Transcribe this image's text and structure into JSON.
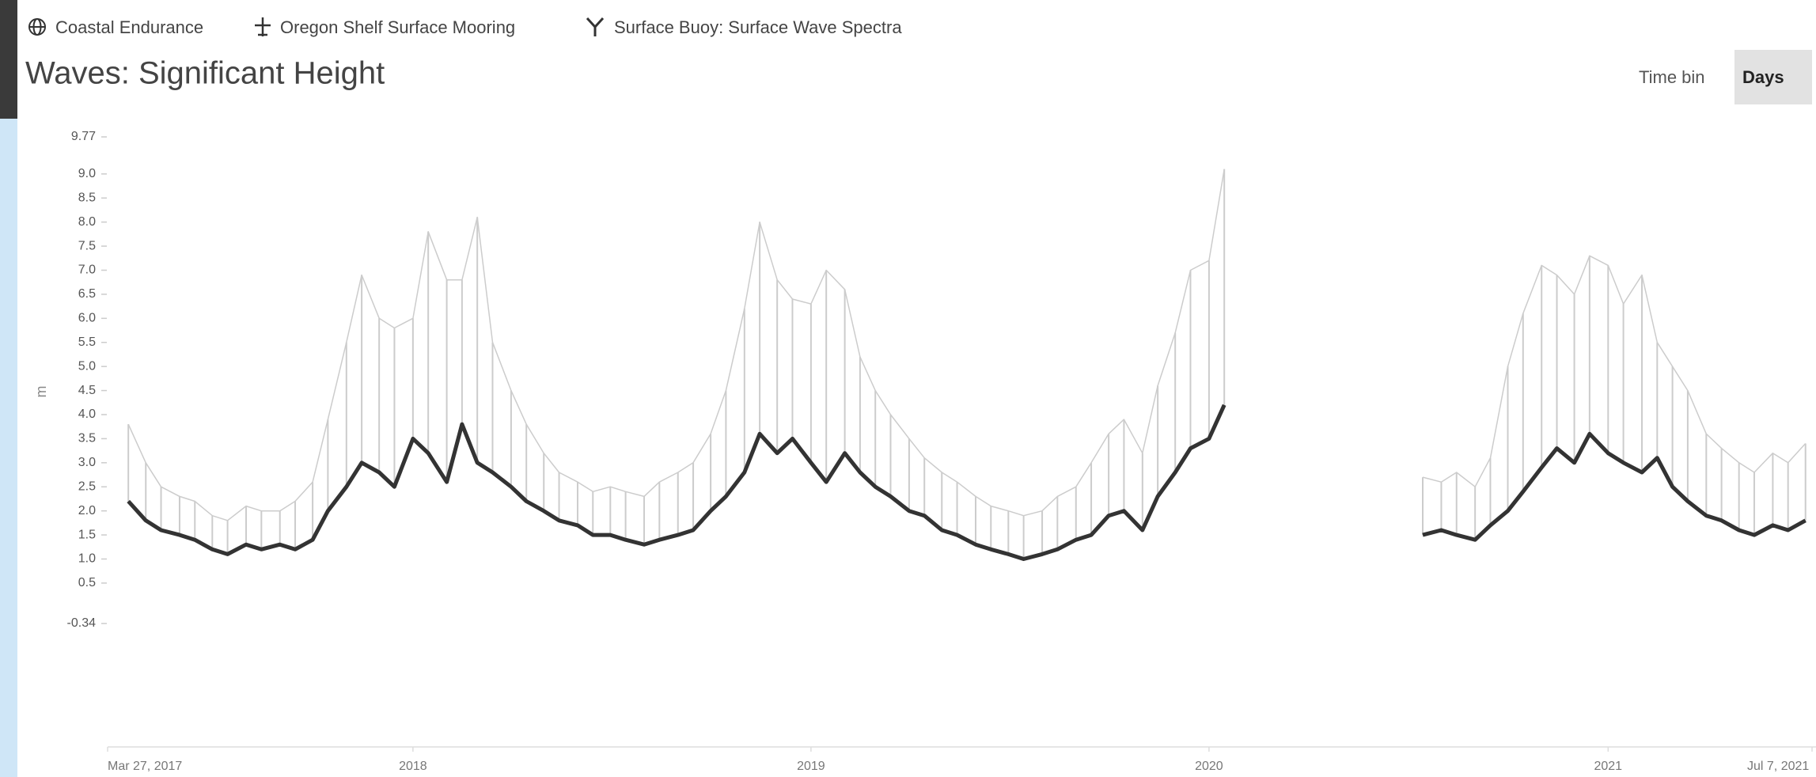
{
  "breadcrumb": [
    "Coastal Endurance",
    "Oregon Shelf Surface Mooring",
    "Surface Buoy: Surface Wave Spectra"
  ],
  "time_bin": {
    "label": "Time bin",
    "value": "Days"
  },
  "chart_data": {
    "type": "line",
    "title": "Waves: Significant Height",
    "y_label": "m",
    "xlim": [
      "2017-03-27",
      "2021-07-07"
    ],
    "xticks": [
      {
        "value": "2017-03-27",
        "label": "Mar 27, 2017"
      },
      "2018",
      "2019",
      "2020",
      "2021",
      {
        "value": "2021-07-07",
        "label": "Jul 7, 2021"
      }
    ],
    "ylim": [
      -0.34,
      9.77
    ],
    "yticks": [
      9.77,
      {
        "value": 9,
        "label": "9.0"
      },
      8.5,
      {
        "value": 8,
        "label": "8.0"
      },
      7.5,
      {
        "value": 7,
        "label": "7.0"
      },
      6.5,
      {
        "value": 6,
        "label": "6.0"
      },
      5.5,
      {
        "value": 5,
        "label": "5.0"
      },
      4.5,
      {
        "value": 4,
        "label": "4.0"
      },
      3.5,
      {
        "value": 3,
        "label": "3.0"
      },
      2.5,
      {
        "value": 2,
        "label": "2.0"
      },
      1.5,
      {
        "value": 1,
        "label": "1.0"
      },
      0.5,
      -0.34
    ],
    "x": [
      "2017-04-15",
      "2017-05-01",
      "2017-05-15",
      "2017-06-01",
      "2017-06-15",
      "2017-07-01",
      "2017-07-15",
      "2017-08-01",
      "2017-08-15",
      "2017-09-01",
      "2017-09-15",
      "2017-10-01",
      "2017-10-15",
      "2017-11-01",
      "2017-11-15",
      "2017-12-01",
      "2017-12-15",
      "2018-01-01",
      "2018-01-15",
      "2018-02-01",
      "2018-02-15",
      "2018-03-01",
      "2018-03-15",
      "2018-04-01",
      "2018-04-15",
      "2018-05-01",
      "2018-05-15",
      "2018-06-01",
      "2018-06-15",
      "2018-07-01",
      "2018-07-15",
      "2018-08-01",
      "2018-08-15",
      "2018-09-01",
      "2018-09-15",
      "2018-10-01",
      "2018-10-15",
      "2018-11-01",
      "2018-11-15",
      "2018-12-01",
      "2018-12-15",
      "2019-01-01",
      "2019-01-15",
      "2019-02-01",
      "2019-02-15",
      "2019-03-01",
      "2019-03-15",
      "2019-04-01",
      "2019-04-15",
      "2019-05-01",
      "2019-05-15",
      "2019-06-01",
      "2019-06-15",
      "2019-07-01",
      "2019-07-15",
      "2019-08-01",
      "2019-08-15",
      "2019-09-01",
      "2019-09-15",
      "2019-10-01",
      "2019-10-15",
      "2019-11-01",
      "2019-11-15",
      "2019-12-01",
      "2019-12-15",
      "2020-01-01",
      "2020-01-15",
      "2020-02-01",
      "2020-07-15",
      "2020-08-01",
      "2020-08-15",
      "2020-09-01",
      "2020-09-15",
      "2020-10-01",
      "2020-10-15",
      "2020-11-01",
      "2020-11-15",
      "2020-12-01",
      "2020-12-15",
      "2021-01-01",
      "2021-01-15",
      "2021-02-01",
      "2021-02-15",
      "2021-03-01",
      "2021-03-15",
      "2021-04-01",
      "2021-04-15",
      "2021-05-01",
      "2021-05-15",
      "2021-06-01",
      "2021-06-15",
      "2021-07-01"
    ],
    "series": [
      {
        "color": "#cccccc",
        "values": [
          3.8,
          3.0,
          2.5,
          2.3,
          2.2,
          1.9,
          1.8,
          2.1,
          2.0,
          2.0,
          2.2,
          2.6,
          3.9,
          5.5,
          6.9,
          6.0,
          5.8,
          6.0,
          7.8,
          6.8,
          6.8,
          8.1,
          5.5,
          4.5,
          3.8,
          3.2,
          2.8,
          2.6,
          2.4,
          2.5,
          2.4,
          2.3,
          2.6,
          2.8,
          3.0,
          3.6,
          4.5,
          6.2,
          8.0,
          6.8,
          6.4,
          6.3,
          7.0,
          6.6,
          5.2,
          4.5,
          4.0,
          3.5,
          3.1,
          2.8,
          2.6,
          2.3,
          2.1,
          2.0,
          1.9,
          2.0,
          2.3,
          2.5,
          3.0,
          3.6,
          3.9,
          3.2,
          4.6,
          5.7,
          7.0,
          7.2,
          9.1,
          null,
          2.7,
          2.6,
          2.8,
          2.5,
          3.1,
          5.0,
          6.1,
          7.1,
          6.9,
          6.5,
          7.3,
          7.1,
          6.3,
          6.9,
          5.5,
          5.0,
          4.5,
          3.6,
          3.3,
          3.0,
          2.8,
          3.2,
          3.0,
          3.4
        ]
      },
      {
        "color": "#333333",
        "values": [
          2.2,
          1.8,
          1.6,
          1.5,
          1.4,
          1.2,
          1.1,
          1.3,
          1.2,
          1.3,
          1.2,
          1.4,
          2.0,
          2.5,
          3.0,
          2.8,
          2.5,
          3.5,
          3.2,
          2.6,
          3.8,
          3.0,
          2.8,
          2.5,
          2.2,
          2.0,
          1.8,
          1.7,
          1.5,
          1.5,
          1.4,
          1.3,
          1.4,
          1.5,
          1.6,
          2.0,
          2.3,
          2.8,
          3.6,
          3.2,
          3.5,
          3.0,
          2.6,
          3.2,
          2.8,
          2.5,
          2.3,
          2.0,
          1.9,
          1.6,
          1.5,
          1.3,
          1.2,
          1.1,
          1.0,
          1.1,
          1.2,
          1.4,
          1.5,
          1.9,
          2.0,
          1.6,
          2.3,
          2.8,
          3.3,
          3.5,
          4.2,
          null,
          1.5,
          1.6,
          1.5,
          1.4,
          1.7,
          2.0,
          2.4,
          2.9,
          3.3,
          3.0,
          3.6,
          3.2,
          3.0,
          2.8,
          3.1,
          2.5,
          2.2,
          1.9,
          1.8,
          1.6,
          1.5,
          1.7,
          1.6,
          1.8
        ]
      }
    ]
  }
}
